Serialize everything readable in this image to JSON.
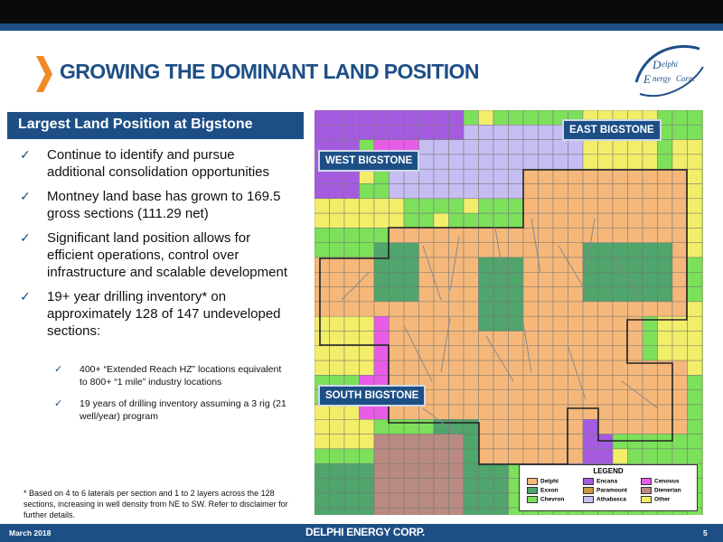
{
  "slide": {
    "title": "GROWING THE DOMINANT LAND POSITION",
    "subheader": "Largest Land Position at Bigstone",
    "logo_text": [
      "elphi",
      "nergy",
      "Corp."
    ],
    "bullets": [
      "Continue to identify and pursue additional consolidation opportunities",
      "Montney land base has grown to 169.5 gross sections (111.29 net)",
      "Significant land position allows for efficient operations, control over infrastructure and scalable development",
      "19+ year drilling inventory* on approximately 128 of 147 undeveloped sections:"
    ],
    "sub_bullets": [
      "400+ “Extended Reach HZ” locations equivalent to 800+ “1 mile” industry locations",
      "19 years of drilling inventory assuming a 3 rig (21 well/year) program"
    ],
    "footnote": "* Based on 4 to 6 laterals per section and 1 to 2 layers across the 128 sections, increasing in well density from NE to SW. Refer to disclaimer for further details.",
    "footer": {
      "date": "March 2018",
      "brand": "DELPHI ENERGY CORP.",
      "page": "5"
    }
  },
  "map": {
    "regions": {
      "east": "EAST BIGSTONE",
      "west": "WEST BIGSTONE",
      "south": "SOUTH BIGSTONE"
    },
    "legend": {
      "title": "LEGEND",
      "items": [
        {
          "label": "Delphi",
          "color": "#f5b87a"
        },
        {
          "label": "Exxon",
          "color": "#4fa56b"
        },
        {
          "label": "Chevron",
          "color": "#7ce05a"
        },
        {
          "label": "Encana",
          "color": "#a55be0"
        },
        {
          "label": "Paramount",
          "color": "#c89a3c"
        },
        {
          "label": "Athabasca",
          "color": "#c6bdf2"
        },
        {
          "label": "Cenovus",
          "color": "#e85ce8"
        },
        {
          "label": "Dienerian",
          "color": "#b88a80"
        },
        {
          "label": "Other",
          "color": "#f2ee6a"
        }
      ]
    }
  },
  "colors": {
    "brand_blue": "#1d4f86",
    "accent_orange": "#f08a24",
    "map_background": "#a7d77a",
    "grid_line": "#777777",
    "well_line": "#8a8a8a"
  }
}
